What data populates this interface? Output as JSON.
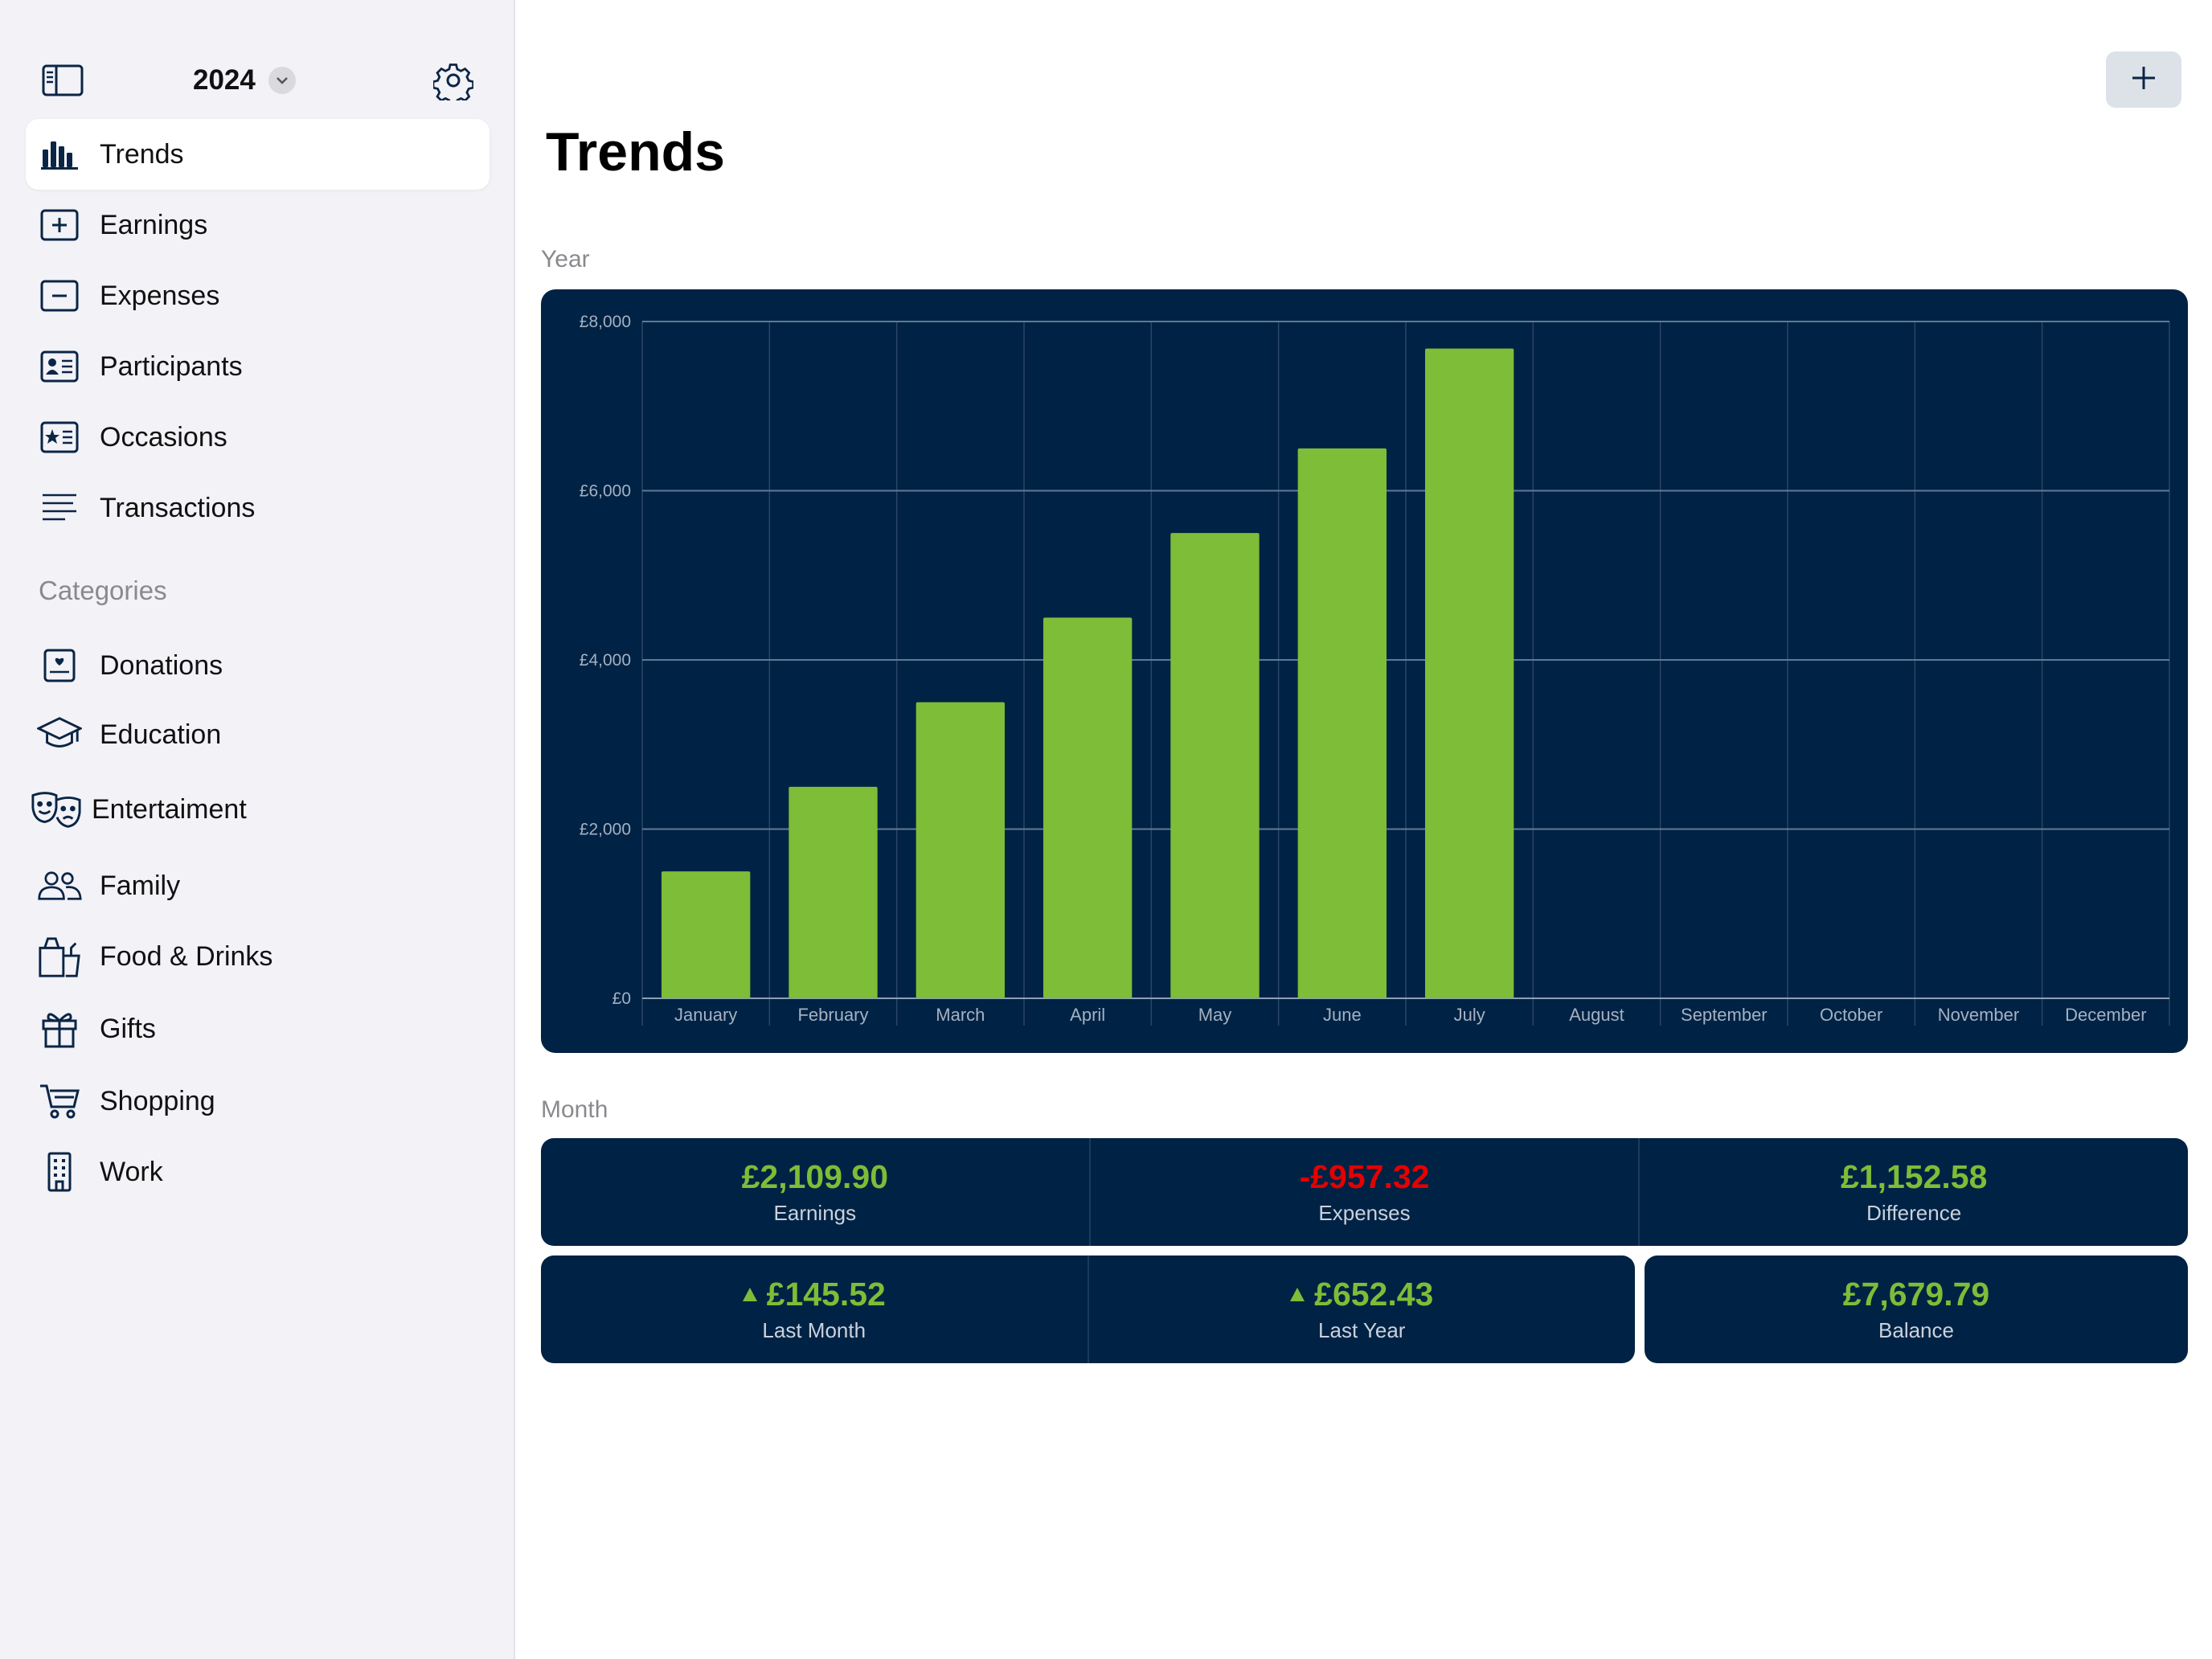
{
  "sidebar": {
    "year": "2024",
    "nav": [
      {
        "label": "Trends",
        "icon": "bar-chart-icon",
        "active": true
      },
      {
        "label": "Earnings",
        "icon": "plus-square-icon"
      },
      {
        "label": "Expenses",
        "icon": "minus-square-icon"
      },
      {
        "label": "Participants",
        "icon": "person-card-icon"
      },
      {
        "label": "Occasions",
        "icon": "star-card-icon"
      },
      {
        "label": "Transactions",
        "icon": "list-lines-icon"
      }
    ],
    "categories_heading": "Categories",
    "categories": [
      {
        "label": "Donations",
        "icon": "donation-icon"
      },
      {
        "label": "Education",
        "icon": "graduation-cap-icon"
      },
      {
        "label": "Entertaiment",
        "icon": "theater-masks-icon"
      },
      {
        "label": "Family",
        "icon": "people-icon"
      },
      {
        "label": "Food & Drinks",
        "icon": "food-drinks-icon"
      },
      {
        "label": "Gifts",
        "icon": "gift-icon"
      },
      {
        "label": "Shopping",
        "icon": "cart-icon"
      },
      {
        "label": "Work",
        "icon": "building-icon"
      }
    ]
  },
  "main": {
    "title": "Trends",
    "year_label": "Year",
    "month_label": "Month",
    "tiles_top": [
      {
        "value": "£2,109.90",
        "label": "Earnings",
        "kind": "pos"
      },
      {
        "value": "-£957.32",
        "label": "Expenses",
        "kind": "neg"
      },
      {
        "value": "£1,152.58",
        "label": "Difference",
        "kind": "pos"
      }
    ],
    "tiles_bottom": [
      {
        "value": "£145.52",
        "label": "Last Month",
        "trend": "up"
      },
      {
        "value": "£652.43",
        "label": "Last Year",
        "trend": "up"
      },
      {
        "value": "£7,679.79",
        "label": "Balance"
      }
    ]
  },
  "colors": {
    "chart_bg": "#002244",
    "bar": "#7dbd37",
    "positive": "#7dbd37",
    "negative": "#e60000",
    "sidebar_bg": "#f2f2f7"
  },
  "chart_data": {
    "type": "bar",
    "categories": [
      "January",
      "February",
      "March",
      "April",
      "May",
      "June",
      "July",
      "August",
      "September",
      "October",
      "November",
      "December"
    ],
    "values": [
      1500,
      2500,
      3500,
      4500,
      5500,
      6500,
      7680,
      null,
      null,
      null,
      null,
      null
    ],
    "ylim": [
      0,
      8000
    ],
    "yticks": [
      0,
      2000,
      4000,
      6000,
      8000
    ],
    "ytick_labels": [
      "£0",
      "£2,000",
      "£4,000",
      "£6,000",
      "£8,000"
    ],
    "grid": true
  }
}
